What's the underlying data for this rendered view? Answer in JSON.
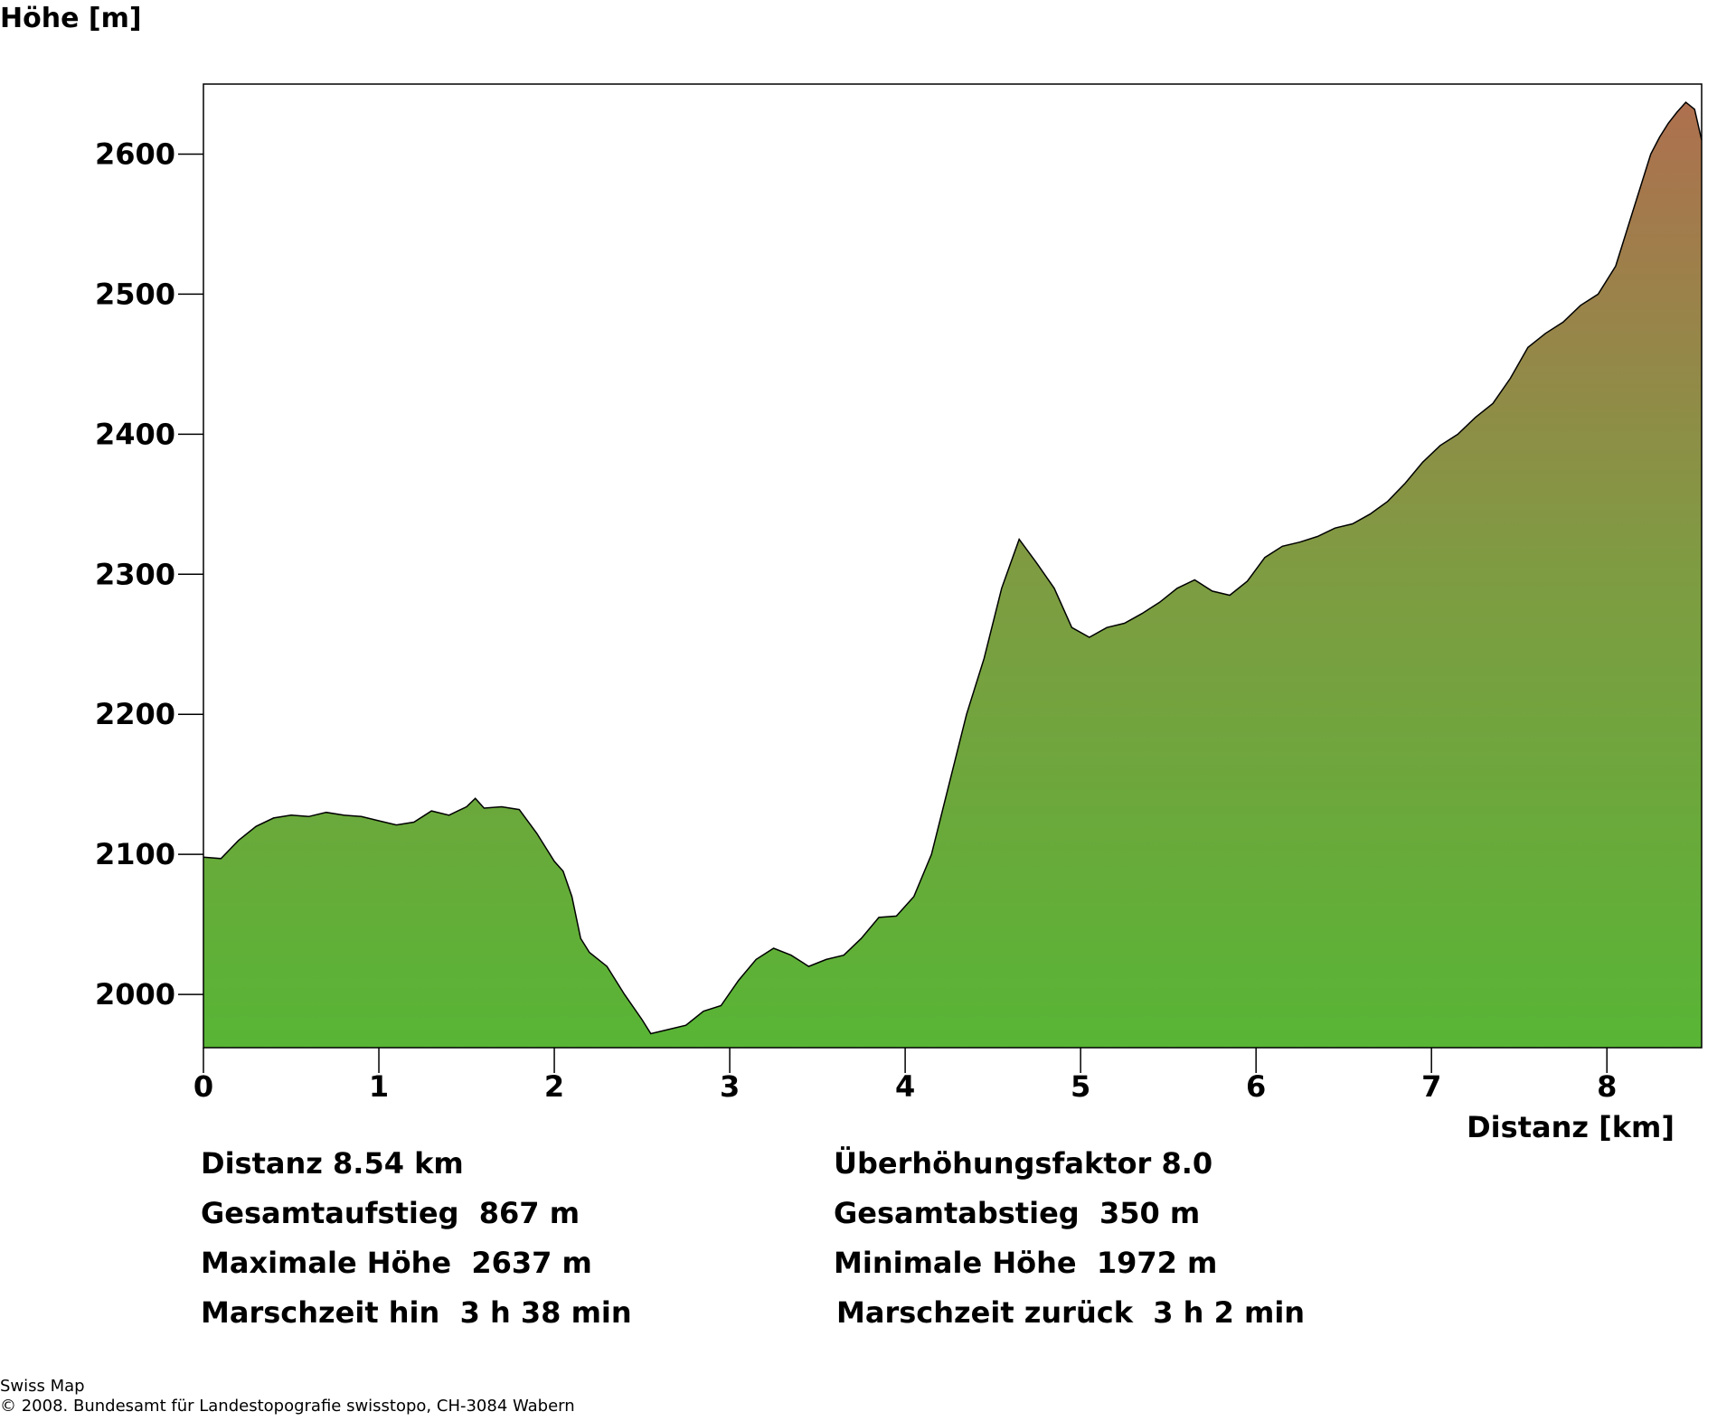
{
  "chart_data": {
    "type": "area",
    "ylabel": "Höhe [m]",
    "xlabel": "Distanz [km]",
    "xlim": [
      0,
      8.54
    ],
    "ylim": [
      1962,
      2650
    ],
    "x_ticks": [
      0,
      1,
      2,
      3,
      4,
      5,
      6,
      7,
      8
    ],
    "y_ticks": [
      2000,
      2100,
      2200,
      2300,
      2400,
      2500,
      2600
    ],
    "gradient": {
      "bottom": "#58b535",
      "middle": "#7e9c42",
      "top": "#ae704f"
    },
    "outline_color": "#000000",
    "x": [
      0,
      0.1,
      0.2,
      0.3,
      0.4,
      0.5,
      0.6,
      0.7,
      0.8,
      0.9,
      1.0,
      1.1,
      1.2,
      1.3,
      1.4,
      1.5,
      1.55,
      1.6,
      1.7,
      1.8,
      1.9,
      2.0,
      2.05,
      2.1,
      2.15,
      2.2,
      2.3,
      2.4,
      2.5,
      2.55,
      2.65,
      2.75,
      2.85,
      2.95,
      3.05,
      3.15,
      3.25,
      3.35,
      3.45,
      3.55,
      3.65,
      3.75,
      3.85,
      3.95,
      4.05,
      4.15,
      4.25,
      4.35,
      4.45,
      4.55,
      4.65,
      4.75,
      4.85,
      4.95,
      5.05,
      5.15,
      5.25,
      5.35,
      5.45,
      5.55,
      5.65,
      5.75,
      5.85,
      5.95,
      6.05,
      6.15,
      6.25,
      6.35,
      6.45,
      6.55,
      6.65,
      6.75,
      6.85,
      6.95,
      7.05,
      7.15,
      7.25,
      7.35,
      7.45,
      7.55,
      7.65,
      7.75,
      7.85,
      7.95,
      8.05,
      8.15,
      8.25,
      8.3,
      8.35,
      8.4,
      8.45,
      8.5,
      8.54
    ],
    "y": [
      2098,
      2097,
      2110,
      2120,
      2126,
      2128,
      2127,
      2130,
      2128,
      2127,
      2124,
      2121,
      2123,
      2131,
      2128,
      2134,
      2140,
      2133,
      2134,
      2132,
      2115,
      2095,
      2088,
      2070,
      2040,
      2030,
      2020,
      2000,
      1982,
      1972,
      1975,
      1978,
      1988,
      1992,
      2010,
      2025,
      2033,
      2028,
      2020,
      2025,
      2028,
      2040,
      2055,
      2056,
      2070,
      2100,
      2150,
      2200,
      2240,
      2290,
      2325,
      2308,
      2290,
      2262,
      2255,
      2262,
      2265,
      2272,
      2280,
      2290,
      2296,
      2288,
      2285,
      2295,
      2312,
      2320,
      2323,
      2327,
      2333,
      2336,
      2343,
      2352,
      2365,
      2380,
      2392,
      2400,
      2412,
      2422,
      2440,
      2462,
      2472,
      2480,
      2492,
      2500,
      2520,
      2560,
      2600,
      2612,
      2622,
      2630,
      2637,
      2632,
      2610
    ]
  },
  "stats": {
    "distanz": "Distanz 8.54 km",
    "ueberhoehung": "Überhöhungsfaktor 8.0",
    "aufstieg": "Gesamtaufstieg  867 m",
    "abstieg": "Gesamtabstieg  350 m",
    "max": "Maximale Höhe  2637 m",
    "min": "Minimale Höhe  1972 m",
    "hin": "Marschzeit hin  3 h 38 min",
    "zurueck": "Marschzeit zurück  3 h 2 min"
  },
  "footer": {
    "line1": "Swiss Map",
    "line2": "© 2008. Bundesamt für Landestopografie swisstopo, CH-3084 Wabern"
  }
}
